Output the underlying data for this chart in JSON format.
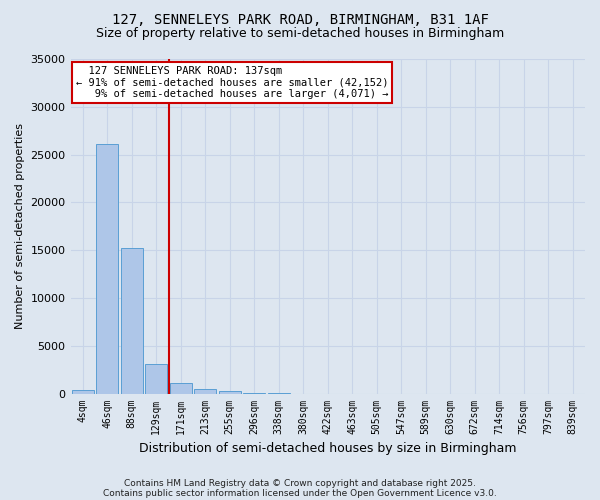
{
  "title": "127, SENNELEYS PARK ROAD, BIRMINGHAM, B31 1AF",
  "subtitle": "Size of property relative to semi-detached houses in Birmingham",
  "xlabel": "Distribution of semi-detached houses by size in Birmingham",
  "ylabel": "Number of semi-detached properties",
  "bar_labels": [
    "4sqm",
    "46sqm",
    "88sqm",
    "129sqm",
    "171sqm",
    "213sqm",
    "255sqm",
    "296sqm",
    "338sqm",
    "380sqm",
    "422sqm",
    "463sqm",
    "505sqm",
    "547sqm",
    "589sqm",
    "630sqm",
    "672sqm",
    "714sqm",
    "756sqm",
    "797sqm",
    "839sqm"
  ],
  "bar_heights": [
    400,
    26100,
    15200,
    3100,
    1100,
    450,
    280,
    40,
    10,
    5,
    2,
    1,
    0,
    0,
    0,
    0,
    0,
    0,
    0,
    0,
    0
  ],
  "bar_color": "#aec6e8",
  "bar_edge_color": "#5a9fd4",
  "grid_color": "#c8d4e8",
  "background_color": "#dde6f0",
  "red_line_x": 3.5,
  "red_line_color": "#cc0000",
  "annotation_text": "  127 SENNELEYS PARK ROAD: 137sqm  \n← 91% of semi-detached houses are smaller (42,152)\n   9% of semi-detached houses are larger (4,071) →",
  "annotation_box_color": "#ffffff",
  "annotation_edge_color": "#cc0000",
  "ylim": [
    0,
    35000
  ],
  "yticks": [
    0,
    5000,
    10000,
    15000,
    20000,
    25000,
    30000,
    35000
  ],
  "footer1": "Contains HM Land Registry data © Crown copyright and database right 2025.",
  "footer2": "Contains public sector information licensed under the Open Government Licence v3.0."
}
